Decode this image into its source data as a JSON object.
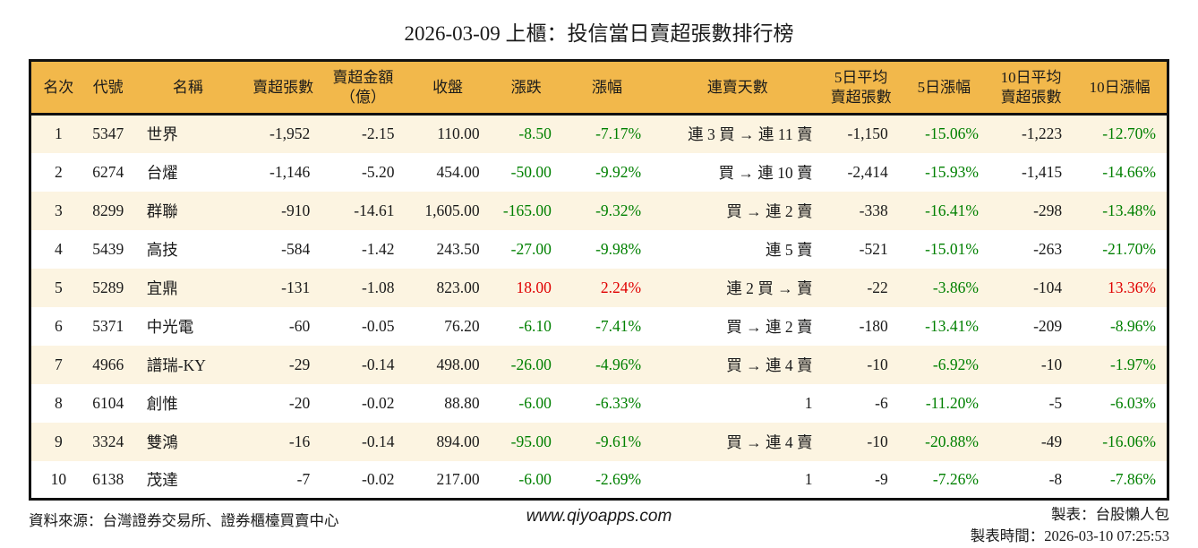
{
  "title": "2026-03-09 上櫃：投信當日賣超張數排行榜",
  "colors": {
    "header_bg": "#F2B84B",
    "row_alt_bg": "#FCF4E1",
    "up_red": "#E00000",
    "down_green": "#008000",
    "border": "#111111",
    "text": "#1A1A1A"
  },
  "table": {
    "headers": [
      "名次",
      "代號",
      "名稱",
      "賣超張數",
      "賣超金額\n（億）",
      "收盤",
      "漲跌",
      "漲幅",
      "連賣天數",
      "5日平均\n賣超張數",
      "5日漲幅",
      "10日平均\n賣超張數",
      "10日漲幅"
    ],
    "rows": [
      {
        "rank": "1",
        "code": "5347",
        "name": "世界",
        "net_sell": "-1,952",
        "amount": "-2.15",
        "close": "110.00",
        "change": "-8.50",
        "change_pct": "-7.17%",
        "streak": "連 3 買 → 連 11 賣",
        "avg5": "-1,150",
        "pct5": "-15.06%",
        "avg10": "-1,223",
        "pct10": "-12.70%"
      },
      {
        "rank": "2",
        "code": "6274",
        "name": "台燿",
        "net_sell": "-1,146",
        "amount": "-5.20",
        "close": "454.00",
        "change": "-50.00",
        "change_pct": "-9.92%",
        "streak": "買 → 連 10 賣",
        "avg5": "-2,414",
        "pct5": "-15.93%",
        "avg10": "-1,415",
        "pct10": "-14.66%"
      },
      {
        "rank": "3",
        "code": "8299",
        "name": "群聯",
        "net_sell": "-910",
        "amount": "-14.61",
        "close": "1,605.00",
        "change": "-165.00",
        "change_pct": "-9.32%",
        "streak": "買 → 連 2 賣",
        "avg5": "-338",
        "pct5": "-16.41%",
        "avg10": "-298",
        "pct10": "-13.48%"
      },
      {
        "rank": "4",
        "code": "5439",
        "name": "高技",
        "net_sell": "-584",
        "amount": "-1.42",
        "close": "243.50",
        "change": "-27.00",
        "change_pct": "-9.98%",
        "streak": "連 5 賣",
        "avg5": "-521",
        "pct5": "-15.01%",
        "avg10": "-263",
        "pct10": "-21.70%"
      },
      {
        "rank": "5",
        "code": "5289",
        "name": "宜鼎",
        "net_sell": "-131",
        "amount": "-1.08",
        "close": "823.00",
        "change": "18.00",
        "change_pct": "2.24%",
        "streak": "連 2 買 → 賣",
        "avg5": "-22",
        "pct5": "-3.86%",
        "avg10": "-104",
        "pct10": "13.36%"
      },
      {
        "rank": "6",
        "code": "5371",
        "name": "中光電",
        "net_sell": "-60",
        "amount": "-0.05",
        "close": "76.20",
        "change": "-6.10",
        "change_pct": "-7.41%",
        "streak": "買 → 連 2 賣",
        "avg5": "-180",
        "pct5": "-13.41%",
        "avg10": "-209",
        "pct10": "-8.96%"
      },
      {
        "rank": "7",
        "code": "4966",
        "name": "譜瑞-KY",
        "net_sell": "-29",
        "amount": "-0.14",
        "close": "498.00",
        "change": "-26.00",
        "change_pct": "-4.96%",
        "streak": "買 → 連 4 賣",
        "avg5": "-10",
        "pct5": "-6.92%",
        "avg10": "-10",
        "pct10": "-1.97%"
      },
      {
        "rank": "8",
        "code": "6104",
        "name": "創惟",
        "net_sell": "-20",
        "amount": "-0.02",
        "close": "88.80",
        "change": "-6.00",
        "change_pct": "-6.33%",
        "streak": "1",
        "avg5": "-6",
        "pct5": "-11.20%",
        "avg10": "-5",
        "pct10": "-6.03%"
      },
      {
        "rank": "9",
        "code": "3324",
        "name": "雙鴻",
        "net_sell": "-16",
        "amount": "-0.14",
        "close": "894.00",
        "change": "-95.00",
        "change_pct": "-9.61%",
        "streak": "買 → 連 4 賣",
        "avg5": "-10",
        "pct5": "-20.88%",
        "avg10": "-49",
        "pct10": "-16.06%"
      },
      {
        "rank": "10",
        "code": "6138",
        "name": "茂達",
        "net_sell": "-7",
        "amount": "-0.02",
        "close": "217.00",
        "change": "-6.00",
        "change_pct": "-2.69%",
        "streak": "1",
        "avg5": "-9",
        "pct5": "-7.26%",
        "avg10": "-8",
        "pct10": "-7.86%"
      }
    ]
  },
  "footer": {
    "source": "資料來源：台灣證券交易所、證券櫃檯買賣中心",
    "website": "www.qiyoapps.com",
    "maker": "製表：台股懶人包",
    "timestamp": "製表時間：2026-03-10 07:25:53"
  }
}
